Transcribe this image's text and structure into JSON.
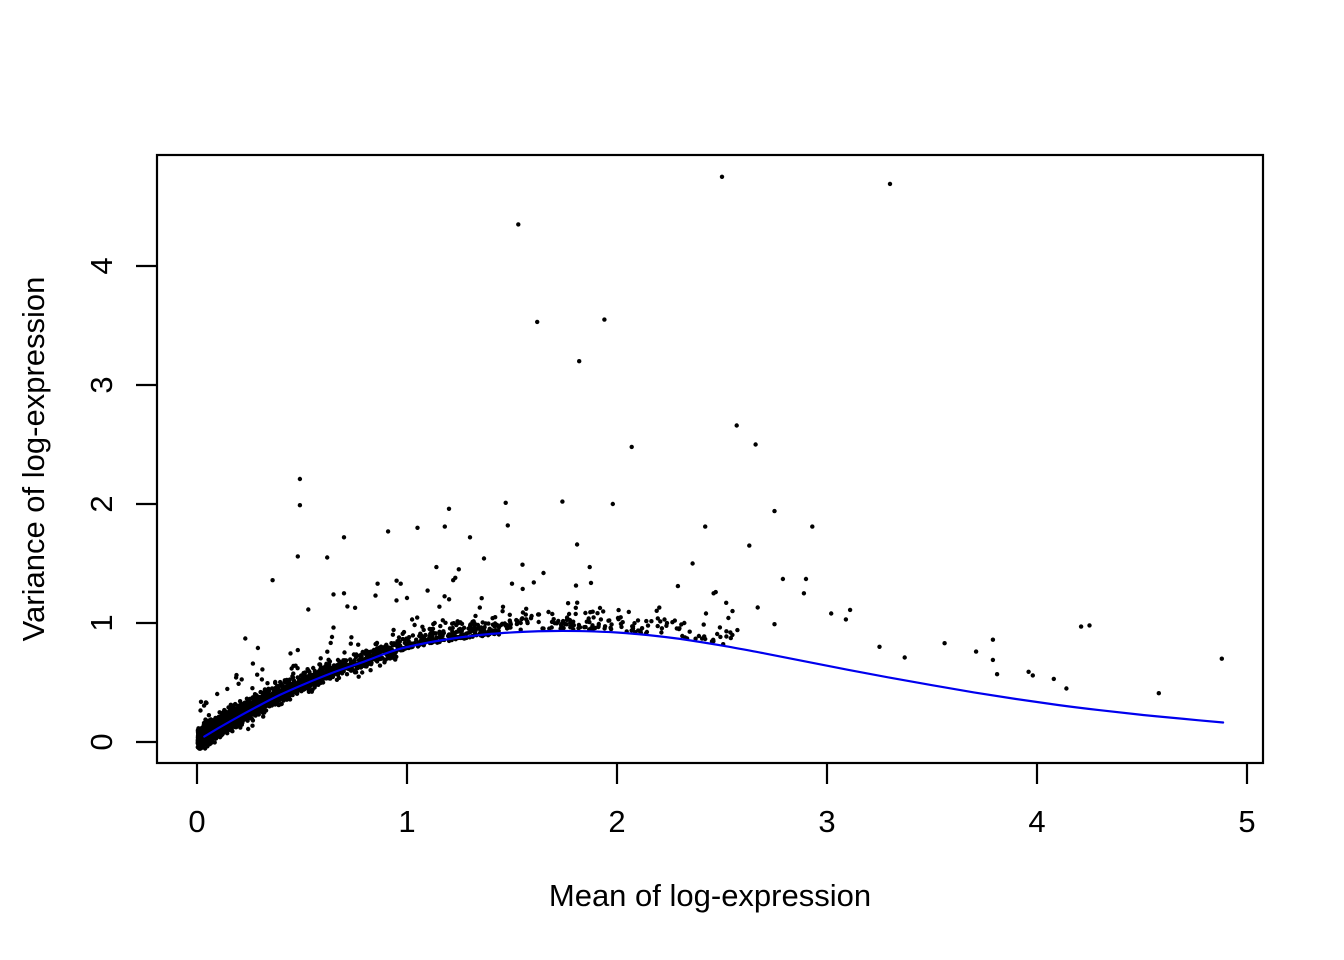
{
  "chart_data": {
    "type": "scatter",
    "title": "",
    "xlabel": "Mean of log-expression",
    "ylabel": "Variance of log-expression",
    "xlim": [
      -0.19,
      5.08
    ],
    "ylim": [
      -0.18,
      4.93
    ],
    "x_ticks": [
      0,
      1,
      2,
      3,
      4,
      5
    ],
    "y_ticks": [
      0,
      1,
      2,
      3,
      4
    ],
    "x_tick_labels": [
      "0",
      "1",
      "2",
      "3",
      "4",
      "5"
    ],
    "y_tick_labels": [
      "0",
      "1",
      "2",
      "3",
      "4"
    ],
    "grid": false,
    "legend": "none",
    "background_color": "#ffffff",
    "axis_color": "#000000",
    "point_color": "#000000",
    "point_radius": 2.2,
    "trend_curve": {
      "color": "#0000EE",
      "stroke_width": 2.2,
      "points": [
        [
          0.0,
          0.0
        ],
        [
          0.1,
          0.115
        ],
        [
          0.2,
          0.215
        ],
        [
          0.3,
          0.31
        ],
        [
          0.4,
          0.4
        ],
        [
          0.5,
          0.478
        ],
        [
          0.65,
          0.585
        ],
        [
          0.8,
          0.678
        ],
        [
          0.95,
          0.775
        ],
        [
          1.1,
          0.835
        ],
        [
          1.25,
          0.878
        ],
        [
          1.4,
          0.908
        ],
        [
          1.55,
          0.925
        ],
        [
          1.7,
          0.933
        ],
        [
          1.85,
          0.931
        ],
        [
          2.0,
          0.92
        ],
        [
          2.15,
          0.898
        ],
        [
          2.3,
          0.866
        ],
        [
          2.5,
          0.81
        ],
        [
          2.7,
          0.745
        ],
        [
          2.9,
          0.676
        ],
        [
          3.1,
          0.607
        ],
        [
          3.3,
          0.54
        ],
        [
          3.5,
          0.477
        ],
        [
          3.7,
          0.417
        ],
        [
          3.9,
          0.361
        ],
        [
          4.1,
          0.311
        ],
        [
          4.3,
          0.267
        ],
        [
          4.5,
          0.228
        ],
        [
          4.7,
          0.194
        ],
        [
          4.886,
          0.164
        ]
      ]
    },
    "outlier_points": [
      [
        2.5,
        4.75
      ],
      [
        3.3,
        4.69
      ],
      [
        1.53,
        4.35
      ],
      [
        1.94,
        3.55
      ],
      [
        1.62,
        3.53
      ],
      [
        1.82,
        3.2
      ],
      [
        2.57,
        2.66
      ],
      [
        2.66,
        2.5
      ],
      [
        2.07,
        2.48
      ],
      [
        0.49,
        2.21
      ],
      [
        0.49,
        1.99
      ],
      [
        1.47,
        2.01
      ],
      [
        1.74,
        2.02
      ],
      [
        1.98,
        2.0
      ],
      [
        1.2,
        1.96
      ],
      [
        2.75,
        1.94
      ],
      [
        2.42,
        1.81
      ],
      [
        2.93,
        1.81
      ],
      [
        1.18,
        1.81
      ],
      [
        1.05,
        1.8
      ],
      [
        0.91,
        1.77
      ],
      [
        0.7,
        1.72
      ],
      [
        1.3,
        1.72
      ],
      [
        1.48,
        1.82
      ],
      [
        1.81,
        1.66
      ],
      [
        2.63,
        1.65
      ],
      [
        0.48,
        1.56
      ],
      [
        0.62,
        1.55
      ],
      [
        1.55,
        1.49
      ],
      [
        1.87,
        1.47
      ],
      [
        1.65,
        1.42
      ],
      [
        1.14,
        1.47
      ],
      [
        1.23,
        1.38
      ],
      [
        0.36,
        1.36
      ],
      [
        1.22,
        1.36
      ],
      [
        0.86,
        1.33
      ],
      [
        0.97,
        1.33
      ],
      [
        1.5,
        1.33
      ],
      [
        2.29,
        1.31
      ],
      [
        2.47,
        1.26
      ],
      [
        2.79,
        1.37
      ],
      [
        2.9,
        1.37
      ],
      [
        2.36,
        1.5
      ],
      [
        0.65,
        1.24
      ],
      [
        0.7,
        1.25
      ],
      [
        0.85,
        1.23
      ],
      [
        0.95,
        1.19
      ],
      [
        1.0,
        1.21
      ],
      [
        2.46,
        1.25
      ],
      [
        2.89,
        1.25
      ],
      [
        2.52,
        1.17
      ],
      [
        2.55,
        1.1
      ],
      [
        2.67,
        1.13
      ],
      [
        3.02,
        1.08
      ],
      [
        3.11,
        1.11
      ],
      [
        3.09,
        1.03
      ],
      [
        2.75,
        0.99
      ],
      [
        2.54,
        0.92
      ],
      [
        3.25,
        0.8
      ],
      [
        3.37,
        0.71
      ],
      [
        3.56,
        0.83
      ],
      [
        3.71,
        0.76
      ],
      [
        3.79,
        0.86
      ],
      [
        3.79,
        0.69
      ],
      [
        3.81,
        0.57
      ],
      [
        3.96,
        0.59
      ],
      [
        3.98,
        0.56
      ],
      [
        4.08,
        0.53
      ],
      [
        4.14,
        0.45
      ],
      [
        4.21,
        0.97
      ],
      [
        4.25,
        0.98
      ],
      [
        4.58,
        0.41
      ],
      [
        4.88,
        0.7
      ],
      [
        0.23,
        0.87
      ],
      [
        0.29,
        0.79
      ]
    ],
    "dense_cloud": {
      "description": "several thousand genes hugging the trend at low means; density decays with mean",
      "seed": 7,
      "n_dense": 2400,
      "x_max_dense": 1.45,
      "n_mid": 175,
      "mid_x_range": [
        1.45,
        2.6
      ]
    }
  }
}
